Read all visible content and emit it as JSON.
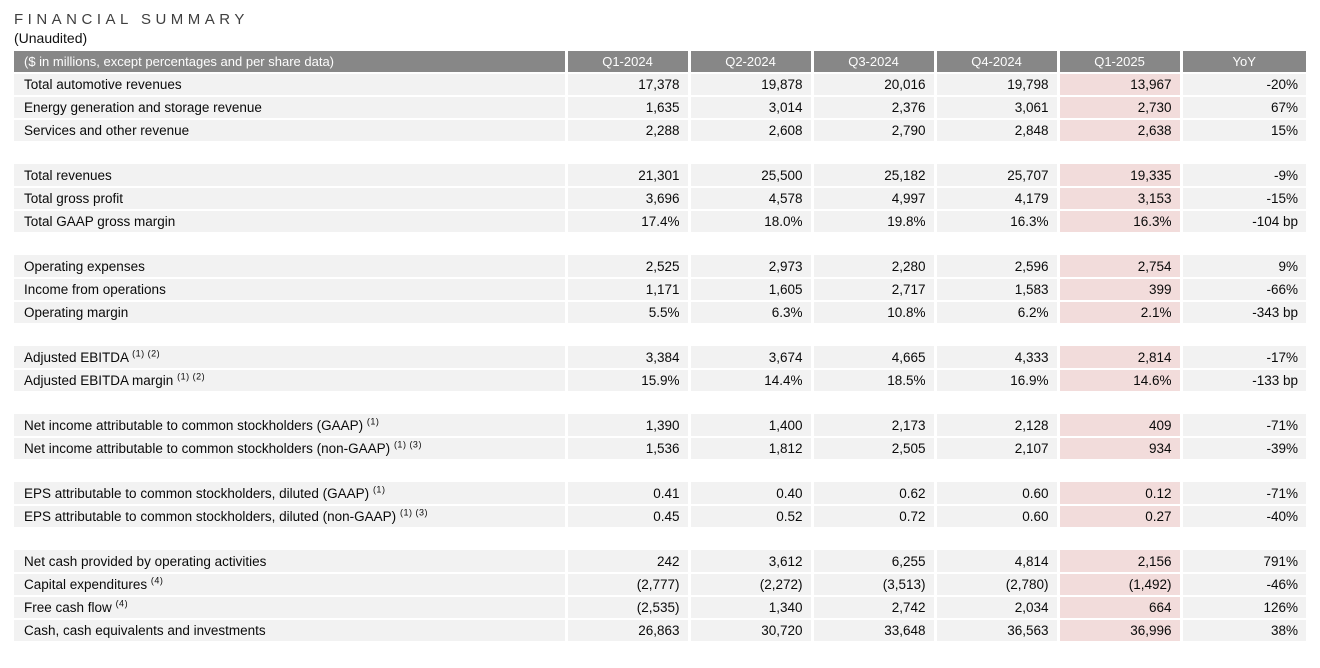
{
  "page": {
    "title": "FINANCIAL SUMMARY",
    "subtitle": "(Unaudited)"
  },
  "table": {
    "header": {
      "label": "($ in millions, except percentages and per share data)",
      "columns": [
        "Q1-2024",
        "Q2-2024",
        "Q3-2024",
        "Q4-2024",
        "Q1-2025",
        "YoY"
      ]
    },
    "highlight_column": "Q1-2025",
    "colors": {
      "header_bg": "#878787",
      "header_text": "#ffffff",
      "row_stripe": "#f2f2f2",
      "highlight": "#f2dcdb"
    },
    "sections": [
      {
        "rows": [
          {
            "label": "Total automotive revenues",
            "sup": "",
            "values": [
              "17,378",
              "19,878",
              "20,016",
              "19,798",
              "13,967",
              "-20%"
            ]
          },
          {
            "label": "Energy generation and storage revenue",
            "sup": "",
            "values": [
              "1,635",
              "3,014",
              "2,376",
              "3,061",
              "2,730",
              "67%"
            ]
          },
          {
            "label": "Services and other revenue",
            "sup": "",
            "values": [
              "2,288",
              "2,608",
              "2,790",
              "2,848",
              "2,638",
              "15%"
            ]
          }
        ]
      },
      {
        "rows": [
          {
            "label": "Total revenues",
            "sup": "",
            "values": [
              "21,301",
              "25,500",
              "25,182",
              "25,707",
              "19,335",
              "-9%"
            ]
          },
          {
            "label": "Total gross profit",
            "sup": "",
            "values": [
              "3,696",
              "4,578",
              "4,997",
              "4,179",
              "3,153",
              "-15%"
            ]
          },
          {
            "label": "Total GAAP gross margin",
            "sup": "",
            "values": [
              "17.4%",
              "18.0%",
              "19.8%",
              "16.3%",
              "16.3%",
              "-104 bp"
            ]
          }
        ]
      },
      {
        "rows": [
          {
            "label": "Operating expenses",
            "sup": "",
            "values": [
              "2,525",
              "2,973",
              "2,280",
              "2,596",
              "2,754",
              "9%"
            ]
          },
          {
            "label": "Income from operations",
            "sup": "",
            "values": [
              "1,171",
              "1,605",
              "2,717",
              "1,583",
              "399",
              "-66%"
            ]
          },
          {
            "label": "Operating margin",
            "sup": "",
            "values": [
              "5.5%",
              "6.3%",
              "10.8%",
              "6.2%",
              "2.1%",
              "-343 bp"
            ]
          }
        ]
      },
      {
        "rows": [
          {
            "label": "Adjusted EBITDA",
            "sup": "(1) (2)",
            "values": [
              "3,384",
              "3,674",
              "4,665",
              "4,333",
              "2,814",
              "-17%"
            ]
          },
          {
            "label": "Adjusted EBITDA margin",
            "sup": "(1) (2)",
            "values": [
              "15.9%",
              "14.4%",
              "18.5%",
              "16.9%",
              "14.6%",
              "-133 bp"
            ]
          }
        ]
      },
      {
        "rows": [
          {
            "label": "Net income attributable to common stockholders (GAAP)",
            "sup": "(1)",
            "values": [
              "1,390",
              "1,400",
              "2,173",
              "2,128",
              "409",
              "-71%"
            ]
          },
          {
            "label": "Net income attributable to common stockholders (non-GAAP)",
            "sup": "(1) (3)",
            "values": [
              "1,536",
              "1,812",
              "2,505",
              "2,107",
              "934",
              "-39%"
            ]
          }
        ]
      },
      {
        "rows": [
          {
            "label": "EPS attributable to common stockholders, diluted (GAAP)",
            "sup": "(1)",
            "values": [
              "0.41",
              "0.40",
              "0.62",
              "0.60",
              "0.12",
              "-71%"
            ]
          },
          {
            "label": "EPS attributable to common stockholders, diluted (non-GAAP)",
            "sup": "(1) (3)",
            "values": [
              "0.45",
              "0.52",
              "0.72",
              "0.60",
              "0.27",
              "-40%"
            ]
          }
        ]
      },
      {
        "rows": [
          {
            "label": "Net cash provided by operating activities",
            "sup": "",
            "values": [
              "242",
              "3,612",
              "6,255",
              "4,814",
              "2,156",
              "791%"
            ]
          },
          {
            "label": "Capital expenditures",
            "sup": "(4)",
            "values": [
              "(2,777)",
              "(2,272)",
              "(3,513)",
              "(2,780)",
              "(1,492)",
              "-46%"
            ]
          },
          {
            "label": "Free cash flow",
            "sup": "(4)",
            "values": [
              "(2,535)",
              "1,340",
              "2,742",
              "2,034",
              "664",
              "126%"
            ]
          },
          {
            "label": "Cash, cash equivalents and investments",
            "sup": "",
            "values": [
              "26,863",
              "30,720",
              "33,648",
              "36,563",
              "36,996",
              "38%"
            ]
          }
        ]
      }
    ]
  }
}
